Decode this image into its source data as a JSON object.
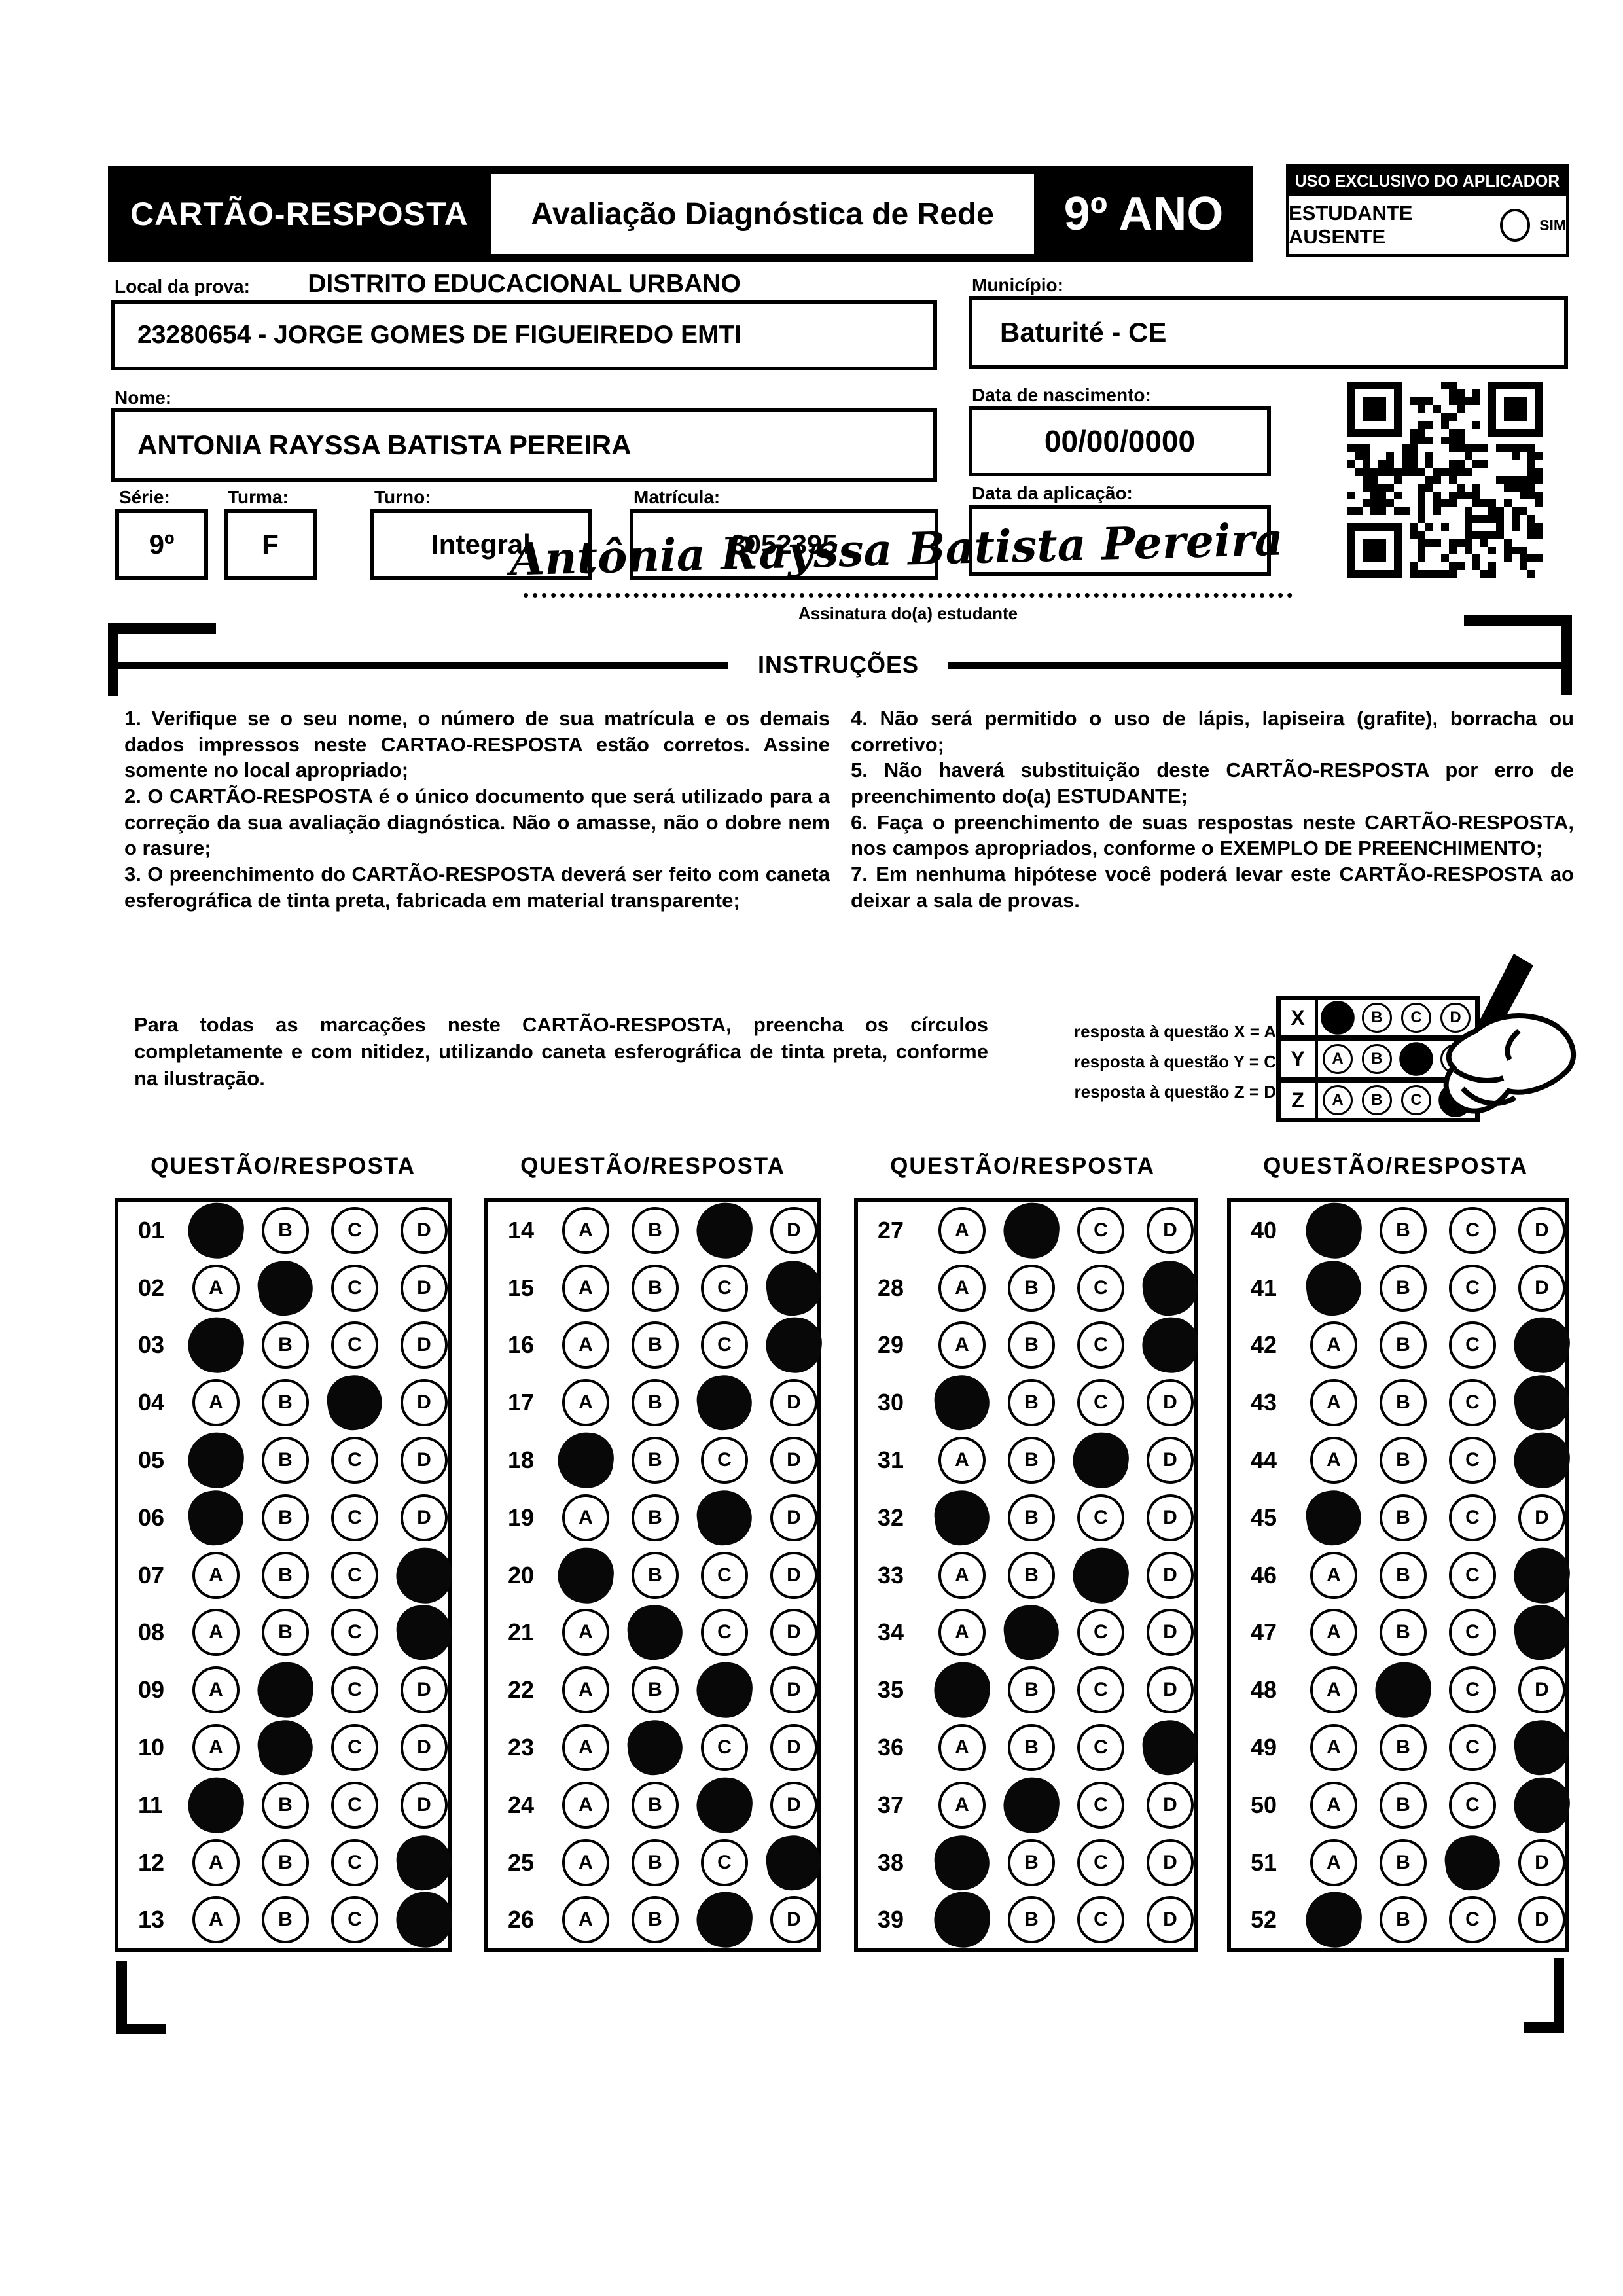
{
  "header": {
    "card_title": "CARTÃO-RESPOSTA",
    "exam_title": "Avaliação Diagnóstica de Rede",
    "grade": "9º ANO",
    "applicator_box_title": "USO EXCLUSIVO DO APLICADOR",
    "absent_label": "ESTUDANTE AUSENTE",
    "absent_option": "SIM"
  },
  "form": {
    "local_label": "Local da prova:",
    "local_value": "DISTRITO EDUCACIONAL URBANO",
    "school_value": "23280654 - JORGE GOMES DE FIGUEIREDO EMTI",
    "municipio_label": "Município:",
    "municipio_value": "Baturité - CE",
    "nome_label": "Nome:",
    "nome_value": "ANTONIA RAYSSA BATISTA PEREIRA",
    "nascimento_label": "Data de nascimento:",
    "nascimento_value": "00/00/0000",
    "serie_label": "Série:",
    "serie_value": "9º",
    "turma_label": "Turma:",
    "turma_value": "F",
    "turno_label": "Turno:",
    "turno_value": "Integral",
    "matricula_label": "Matrícula:",
    "matricula_value": "3052395",
    "aplicacao_label": "Data da aplicação:",
    "aplicacao_value": "",
    "assinatura_script": "Antônia Rayssa Batista Pereira",
    "assinatura_label": "Assinatura do(a) estudante"
  },
  "instructions": {
    "title": "INSTRUÇÕES",
    "left": [
      "1. Verifique se o seu nome, o número de sua matrícula e os demais dados impressos neste CARTAO-RESPOSTA estão corretos. Assine somente no local apropriado;",
      "2. O CARTÃO-RESPOSTA é o único documento que será utilizado para a correção da sua avaliação diagnóstica. Não o amasse, não o dobre nem o rasure;",
      "3. O preenchimento do CARTÃO-RESPOSTA deverá ser feito com caneta esferográfica de tinta preta, fabricada em material transparente;"
    ],
    "right": [
      "4. Não será permitido o uso de lápis, lapiseira (grafite), borracha ou corretivo;",
      "5. Não haverá substituição deste CARTÃO-RESPOSTA por erro de preenchimento do(a) ESTUDANTE;",
      "6. Faça o preenchimento de suas respostas neste CARTÃO-RESPOSTA, nos campos apropriados, conforme o EXEMPLO DE PREENCHIMENTO;",
      "7. Em nenhuma hipótese você poderá levar este CARTÃO-RESPOSTA ao deixar a sala de provas."
    ]
  },
  "example": {
    "paragraph": "Para todas as marcações neste CARTÃO-RESPOSTA, preencha os círculos completamente e com nitidez, utilizando caneta esferográfica de tinta preta, conforme na ilustração.",
    "legend": [
      "resposta à questão X = A",
      "resposta à questão Y = C",
      "resposta à questão Z = D"
    ],
    "options": [
      "A",
      "B",
      "C",
      "D"
    ],
    "grid_rows": [
      {
        "label": "X",
        "filled": "A"
      },
      {
        "label": "Y",
        "filled": "C"
      },
      {
        "label": "Z",
        "filled": "D"
      }
    ]
  },
  "answers": {
    "column_header": "QUESTÃO/RESPOSTA",
    "options": [
      "A",
      "B",
      "C",
      "D"
    ],
    "columns": [
      {
        "items": [
          {
            "q": "01",
            "marked": "A"
          },
          {
            "q": "02",
            "marked": "B"
          },
          {
            "q": "03",
            "marked": "A"
          },
          {
            "q": "04",
            "marked": "C"
          },
          {
            "q": "05",
            "marked": "A"
          },
          {
            "q": "06",
            "marked": "A"
          },
          {
            "q": "07",
            "marked": "D"
          },
          {
            "q": "08",
            "marked": "D"
          },
          {
            "q": "09",
            "marked": "B"
          },
          {
            "q": "10",
            "marked": "B"
          },
          {
            "q": "11",
            "marked": "A"
          },
          {
            "q": "12",
            "marked": "D"
          },
          {
            "q": "13",
            "marked": "D"
          }
        ]
      },
      {
        "items": [
          {
            "q": "14",
            "marked": "C"
          },
          {
            "q": "15",
            "marked": "D"
          },
          {
            "q": "16",
            "marked": "D"
          },
          {
            "q": "17",
            "marked": "C"
          },
          {
            "q": "18",
            "marked": "A"
          },
          {
            "q": "19",
            "marked": "C"
          },
          {
            "q": "20",
            "marked": "A"
          },
          {
            "q": "21",
            "marked": "B"
          },
          {
            "q": "22",
            "marked": "C"
          },
          {
            "q": "23",
            "marked": "B"
          },
          {
            "q": "24",
            "marked": "C"
          },
          {
            "q": "25",
            "marked": "D"
          },
          {
            "q": "26",
            "marked": "C"
          }
        ]
      },
      {
        "items": [
          {
            "q": "27",
            "marked": "B"
          },
          {
            "q": "28",
            "marked": "D"
          },
          {
            "q": "29",
            "marked": "D"
          },
          {
            "q": "30",
            "marked": "A"
          },
          {
            "q": "31",
            "marked": "C"
          },
          {
            "q": "32",
            "marked": "A"
          },
          {
            "q": "33",
            "marked": "C"
          },
          {
            "q": "34",
            "marked": "B"
          },
          {
            "q": "35",
            "marked": "A"
          },
          {
            "q": "36",
            "marked": "D"
          },
          {
            "q": "37",
            "marked": "B"
          },
          {
            "q": "38",
            "marked": "A"
          },
          {
            "q": "39",
            "marked": "A"
          }
        ]
      },
      {
        "items": [
          {
            "q": "40",
            "marked": "A"
          },
          {
            "q": "41",
            "marked": "A"
          },
          {
            "q": "42",
            "marked": "D"
          },
          {
            "q": "43",
            "marked": "D"
          },
          {
            "q": "44",
            "marked": "D"
          },
          {
            "q": "45",
            "marked": "A"
          },
          {
            "q": "46",
            "marked": "D"
          },
          {
            "q": "47",
            "marked": "D"
          },
          {
            "q": "48",
            "marked": "B"
          },
          {
            "q": "49",
            "marked": "D"
          },
          {
            "q": "50",
            "marked": "D"
          },
          {
            "q": "51",
            "marked": "C"
          },
          {
            "q": "52",
            "marked": "A"
          }
        ]
      }
    ]
  }
}
